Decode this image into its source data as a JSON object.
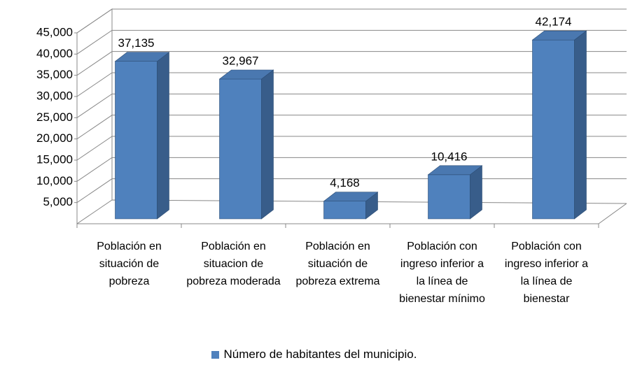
{
  "chart_data": {
    "type": "bar3d",
    "categories": [
      "Población en situación de pobreza",
      "Población en situacion de pobreza moderada",
      "Población en situación de pobreza extrema",
      "Población con ingreso inferior a la línea de bienestar mínimo",
      "Población con ingreso inferior a la línea de bienestar"
    ],
    "series": [
      {
        "name": "Número de habitantes del municipio.",
        "color": "#4f81bd",
        "values": [
          37135,
          32967,
          4168,
          10416,
          42174
        ],
        "value_labels": [
          "37,135",
          "32,967",
          "4,168",
          "10,416",
          "42,174"
        ]
      }
    ],
    "ylim": [
      0,
      45000
    ],
    "yticks": [
      {
        "value": 5000,
        "label": "5,000"
      },
      {
        "value": 10000,
        "label": "10,000"
      },
      {
        "value": 15000,
        "label": "15,000"
      },
      {
        "value": 20000,
        "label": "20,000"
      },
      {
        "value": 25000,
        "label": "25,000"
      },
      {
        "value": 30000,
        "label": "30,000"
      },
      {
        "value": 35000,
        "label": "35,000"
      },
      {
        "value": 40000,
        "label": "40,000"
      },
      {
        "value": 45000,
        "label": "45,000"
      }
    ],
    "grid": true
  }
}
